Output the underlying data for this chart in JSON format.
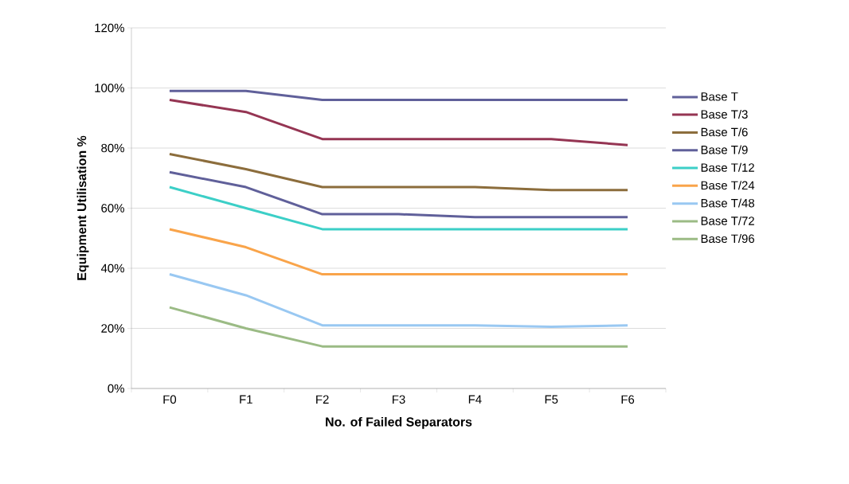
{
  "chart_data": {
    "type": "line",
    "xlabel": "No. of Failed Separators",
    "ylabel": "Equipment Utilisation %",
    "categories": [
      "F0",
      "F1",
      "F2",
      "F3",
      "F4",
      "F5",
      "F6"
    ],
    "ylim": [
      0,
      1.2
    ],
    "yticks": [
      {
        "value": 0,
        "label": "0%"
      },
      {
        "value": 0.2,
        "label": "20%"
      },
      {
        "value": 0.4,
        "label": "40%"
      },
      {
        "value": 0.6,
        "label": "60%"
      },
      {
        "value": 0.8,
        "label": "80%"
      },
      {
        "value": 1.0,
        "label": "100%"
      },
      {
        "value": 1.2,
        "label": "120%"
      }
    ],
    "grid": "y",
    "legend": "right",
    "series": [
      {
        "name": "Base T",
        "color": "#60609a",
        "values": [
          0.99,
          0.99,
          0.96,
          0.96,
          0.96,
          0.96,
          0.96
        ]
      },
      {
        "name": "Base T/3",
        "color": "#953553",
        "values": [
          0.96,
          0.92,
          0.83,
          0.83,
          0.83,
          0.83,
          0.81
        ]
      },
      {
        "name": "Base T/6",
        "color": "#8c6d3c",
        "values": [
          0.78,
          0.73,
          0.67,
          0.67,
          0.67,
          0.66,
          0.66
        ]
      },
      {
        "name": "Base T/9",
        "color": "#60609a",
        "values": [
          0.72,
          0.67,
          0.58,
          0.58,
          0.57,
          0.57,
          0.57
        ]
      },
      {
        "name": "Base T/12",
        "color": "#3ccfc7",
        "values": [
          0.67,
          0.6,
          0.53,
          0.53,
          0.53,
          0.53,
          0.53
        ]
      },
      {
        "name": "Base T/24",
        "color": "#f9a44a",
        "values": [
          0.53,
          0.47,
          0.38,
          0.38,
          0.38,
          0.38,
          0.38
        ]
      },
      {
        "name": "Base T/48",
        "color": "#99c8f2",
        "values": [
          0.38,
          0.31,
          0.21,
          0.21,
          0.21,
          0.205,
          0.21
        ]
      },
      {
        "name": "Base T/72",
        "color": "#9bbb85",
        "values": [
          0.27,
          0.2,
          0.14,
          0.14,
          0.14,
          0.14,
          0.14
        ]
      },
      {
        "name": "Base T/96",
        "color": "#9bbb85",
        "values": [
          null,
          null,
          null,
          null,
          null,
          null,
          null
        ]
      }
    ]
  }
}
